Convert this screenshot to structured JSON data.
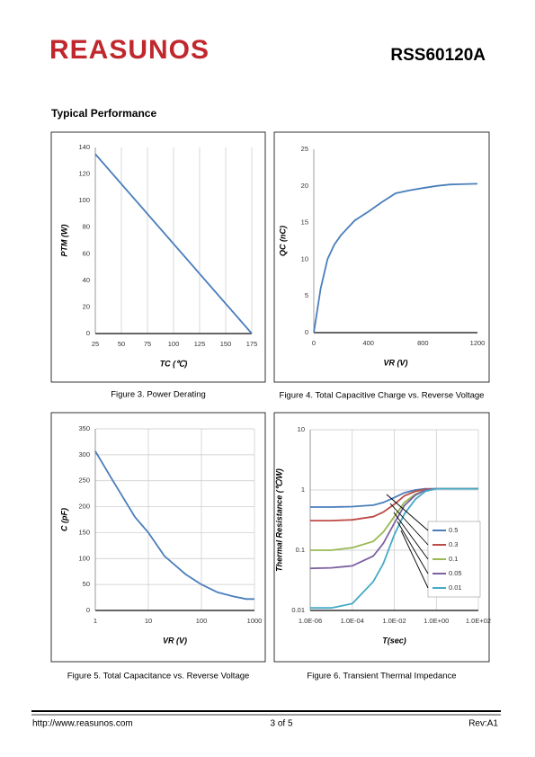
{
  "header": {
    "logo": "REASUNOS",
    "part": "RSS60120A"
  },
  "section_title": "Typical Performance",
  "charts": [
    {
      "type": "line",
      "caption": "Figure 3. Power Derating",
      "xlabel": "TC (℃)",
      "ylabel": "PTM (W)",
      "x": [
        25,
        175
      ],
      "series": [
        {
          "color": "#4a7ebb",
          "values": [
            135,
            0
          ]
        }
      ],
      "xlim": [
        25,
        175
      ],
      "ylim": [
        0,
        140
      ],
      "xticks": [
        25,
        50,
        75,
        100,
        125,
        150,
        175
      ],
      "yticks": [
        0,
        20,
        40,
        60,
        80,
        100,
        120,
        140
      ],
      "xlog": false,
      "ylog": false,
      "grid": "x"
    },
    {
      "type": "line",
      "caption": "Figure 4. Total Capacitive Charge vs. Reverse Voltage",
      "xlabel": "VR (V)",
      "ylabel": "QC (nC)",
      "x": [
        0,
        50,
        100,
        150,
        200,
        300,
        400,
        500,
        600,
        700,
        800,
        900,
        1000,
        1200
      ],
      "series": [
        {
          "color": "#4a7ebb",
          "values": [
            0,
            6,
            10,
            12,
            13.3,
            15.3,
            16.5,
            17.8,
            19,
            19.4,
            19.7,
            20,
            20.2,
            20.3
          ]
        }
      ],
      "xlim": [
        0,
        1200
      ],
      "ylim": [
        0,
        25
      ],
      "xticks": [
        0,
        400,
        800,
        1200
      ],
      "yticks": [
        0,
        5,
        10,
        15,
        20,
        25
      ],
      "xlog": false,
      "ylog": false,
      "grid": false
    },
    {
      "type": "line",
      "caption": "Figure 5. Total Capacitance vs. Reverse Voltage",
      "xlabel": "VR (V)",
      "ylabel": "C (pF)",
      "x": [
        1,
        2,
        5.6,
        10,
        20,
        50,
        100,
        200,
        400,
        700,
        1000
      ],
      "series": [
        {
          "color": "#4a7ebb",
          "values": [
            307,
            255,
            180,
            150,
            105,
            70,
            50,
            35,
            27,
            22,
            22
          ]
        }
      ],
      "xlim": [
        1,
        1000
      ],
      "ylim": [
        0,
        350
      ],
      "xticks": [
        1,
        10,
        100,
        1000
      ],
      "yticks": [
        0,
        50,
        100,
        150,
        200,
        250,
        300,
        350
      ],
      "xlog": true,
      "ylog": false,
      "grid": "both"
    },
    {
      "type": "line",
      "caption": "Figure 6. Transient Thermal Impedance",
      "xlabel": "T(sec)",
      "ylabel": "Thermal Resistance (℃/W)",
      "x": [
        1e-06,
        1e-05,
        0.0001,
        0.001,
        0.003,
        0.01,
        0.03,
        0.1,
        0.3,
        1,
        10,
        100
      ],
      "series": [
        {
          "name": "0.5",
          "color": "#4a7ebb",
          "values": [
            0.52,
            0.52,
            0.53,
            0.56,
            0.62,
            0.75,
            0.9,
            1.0,
            1.05,
            1.05,
            1.05,
            1.05
          ]
        },
        {
          "name": "0.3",
          "color": "#be4b48",
          "values": [
            0.31,
            0.31,
            0.32,
            0.36,
            0.43,
            0.58,
            0.8,
            0.95,
            1.03,
            1.05,
            1.05,
            1.05
          ]
        },
        {
          "name": "0.1",
          "color": "#98b954",
          "values": [
            0.1,
            0.1,
            0.11,
            0.14,
            0.2,
            0.36,
            0.62,
            0.85,
            1.0,
            1.05,
            1.05,
            1.05
          ]
        },
        {
          "name": "0.05",
          "color": "#7d60a0",
          "values": [
            0.05,
            0.051,
            0.055,
            0.08,
            0.13,
            0.28,
            0.55,
            0.82,
            1.0,
            1.05,
            1.05,
            1.05
          ]
        },
        {
          "name": "0.01",
          "color": "#46aac5",
          "values": [
            0.011,
            0.011,
            0.013,
            0.03,
            0.06,
            0.18,
            0.4,
            0.7,
            0.95,
            1.05,
            1.05,
            1.05
          ]
        }
      ],
      "xlim": [
        1e-06,
        100
      ],
      "ylim": [
        0.01,
        10
      ],
      "xticks": [
        {
          "value": 1e-06,
          "label": "1.0E-06"
        },
        {
          "value": 0.0001,
          "label": "1.0E-04"
        },
        {
          "value": 0.01,
          "label": "1.0E-02"
        },
        {
          "value": 1,
          "label": "1.0E+00"
        },
        {
          "value": 100,
          "label": "1.0E+02"
        }
      ],
      "yticks": [
        0.01,
        0.1,
        1,
        10
      ],
      "xlog": true,
      "ylog": true,
      "grid": "both",
      "legend": "right"
    }
  ],
  "footer": {
    "url": "http://www.reasunos.com",
    "page": "3 of 5",
    "rev": "Rev:A1"
  }
}
